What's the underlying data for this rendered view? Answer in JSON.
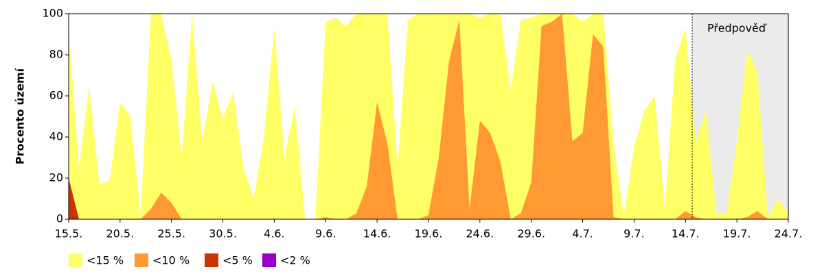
{
  "chart_data": {
    "type": "area",
    "ylabel": "Procento území",
    "annotation": "Předpověď",
    "categories": [
      "15.5.",
      null,
      null,
      null,
      null,
      "20.5.",
      null,
      null,
      null,
      null,
      "25.5.",
      null,
      null,
      null,
      null,
      "30.5.",
      null,
      null,
      null,
      null,
      "4.6.",
      null,
      null,
      null,
      null,
      "9.6.",
      null,
      null,
      null,
      null,
      "14.6.",
      null,
      null,
      null,
      null,
      "19.6.",
      null,
      null,
      null,
      null,
      "24.6.",
      null,
      null,
      null,
      null,
      "29.6.",
      null,
      null,
      null,
      null,
      "4.7.",
      null,
      null,
      null,
      null,
      "9.7.",
      null,
      null,
      null,
      null,
      "14.7.",
      null,
      null,
      null,
      null,
      "19.7.",
      null,
      null,
      null,
      null,
      "24.7."
    ],
    "series": [
      {
        "name": "<15 %",
        "color": "#ffff66",
        "values": [
          93,
          25,
          65,
          17,
          19,
          57,
          50,
          2,
          100,
          100,
          78,
          30,
          100,
          38,
          67,
          49,
          62,
          25,
          10,
          40,
          93,
          30,
          55,
          0,
          0,
          96,
          98,
          94,
          100,
          100,
          100,
          100,
          25,
          97,
          100,
          100,
          100,
          100,
          100,
          100,
          98,
          100,
          100,
          63,
          97,
          98,
          100,
          100,
          100,
          100,
          96,
          100,
          100,
          37,
          2,
          35,
          53,
          60,
          5,
          78,
          93,
          38,
          53,
          3,
          3,
          38,
          82,
          72,
          1,
          10,
          3
        ]
      },
      {
        "name": "<10 %",
        "color": "#ff9933",
        "values": [
          20,
          0,
          0,
          0,
          0,
          0,
          0,
          0,
          5,
          13,
          8,
          0,
          0,
          0,
          0,
          0,
          0,
          0,
          0,
          0,
          0,
          0,
          0,
          0,
          0,
          1,
          0,
          0,
          3,
          16,
          57,
          37,
          0,
          0,
          0,
          2,
          30,
          77,
          97,
          5,
          48,
          42,
          28,
          0,
          3,
          18,
          94,
          96,
          100,
          38,
          42,
          90,
          84,
          1,
          0,
          0,
          0,
          0,
          0,
          0,
          4,
          1,
          0,
          0,
          0,
          0,
          1,
          4,
          0,
          0,
          0
        ]
      },
      {
        "name": "<5 %",
        "color": "#cc3300",
        "values": [
          20,
          0,
          0,
          0,
          0,
          0,
          0,
          0,
          0,
          0,
          0,
          0,
          0,
          0,
          0,
          0,
          0,
          0,
          0,
          0,
          0,
          0,
          0,
          0,
          0,
          0,
          0,
          0,
          0,
          0,
          0,
          0,
          0,
          0,
          0,
          0,
          0,
          0,
          0,
          0,
          0,
          0,
          0,
          0,
          0,
          0,
          0,
          0,
          0,
          0,
          0,
          0,
          0,
          0,
          0,
          0,
          0,
          0,
          0,
          0,
          0,
          0,
          0,
          0,
          0,
          0,
          0,
          0,
          0,
          0,
          0
        ]
      },
      {
        "name": "<2 %",
        "color": "#9900cc",
        "values": [
          0,
          0,
          0,
          0,
          0,
          0,
          0,
          0,
          0,
          0,
          0,
          0,
          0,
          0,
          0,
          0,
          0,
          0,
          0,
          0,
          0,
          0,
          0,
          0,
          0,
          0,
          0,
          0,
          0,
          0,
          0,
          0,
          0,
          0,
          0,
          0,
          0,
          0,
          0,
          0,
          0,
          0,
          0,
          0,
          0,
          0,
          0,
          0,
          0,
          0,
          0,
          0,
          0,
          0,
          0,
          0,
          0,
          0,
          0,
          0,
          0,
          0,
          0,
          0,
          0,
          0,
          0,
          0,
          0,
          0,
          0
        ]
      }
    ],
    "ylim": [
      0,
      100
    ],
    "yticks": [
      0,
      20,
      40,
      60,
      80,
      100
    ]
  }
}
